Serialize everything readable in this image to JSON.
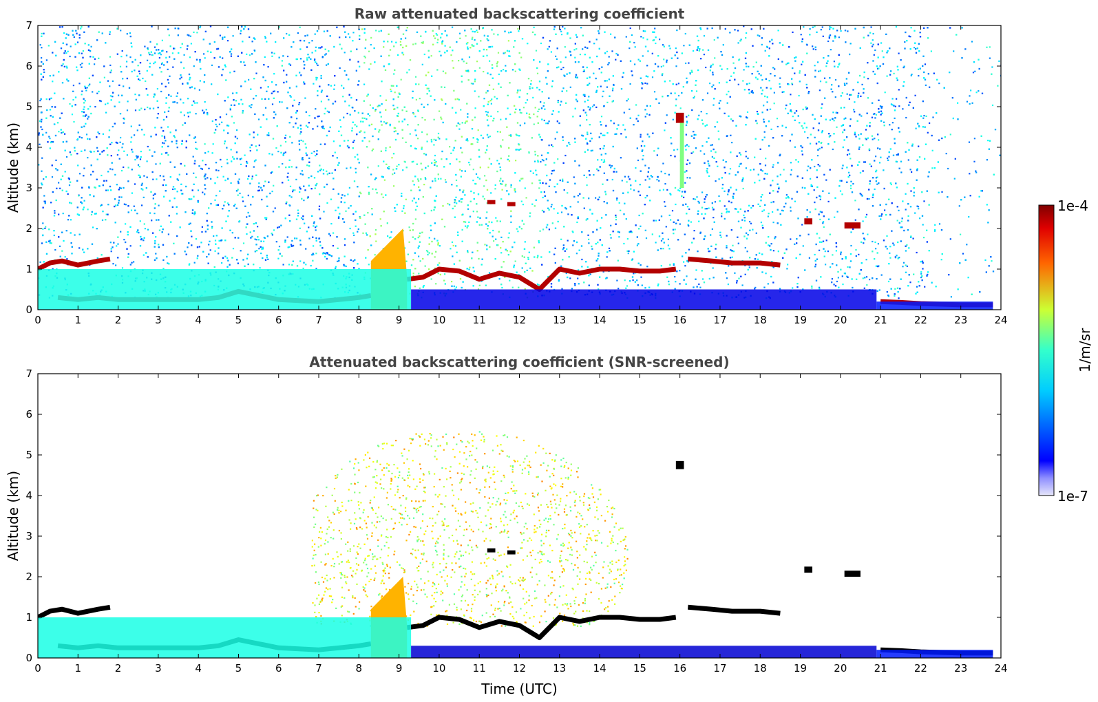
{
  "chart_data": [
    {
      "type": "heatmap",
      "title": "Raw attenuated backscattering coefficient",
      "xlabel": "",
      "ylabel": "Altitude (km)",
      "xlim": [
        0,
        24
      ],
      "ylim": [
        0,
        7
      ],
      "xticks": [
        "0",
        "1",
        "2",
        "3",
        "4",
        "5",
        "6",
        "7",
        "8",
        "9",
        "10",
        "11",
        "12",
        "13",
        "14",
        "15",
        "16",
        "17",
        "18",
        "19",
        "20",
        "21",
        "22",
        "23",
        "24"
      ],
      "yticks": [
        "0",
        "1",
        "2",
        "3",
        "4",
        "5",
        "6",
        "7"
      ],
      "screened": false,
      "features": [
        {
          "kind": "layer",
          "t": [
            0.0,
            0.3,
            0.6,
            1.0,
            1.5,
            1.8
          ],
          "alt": [
            1.0,
            1.15,
            1.2,
            1.1,
            1.2,
            1.25
          ],
          "level": 0.95
        },
        {
          "kind": "layer",
          "t": [
            0.5,
            1.0,
            1.5,
            2.0,
            3.0,
            4.0,
            4.5,
            5.0,
            5.5,
            6.0,
            7.0,
            7.5,
            8.0,
            8.3
          ],
          "alt": [
            0.3,
            0.25,
            0.3,
            0.25,
            0.25,
            0.25,
            0.3,
            0.45,
            0.35,
            0.25,
            0.2,
            0.25,
            0.3,
            0.35
          ],
          "level": 0.95
        },
        {
          "kind": "layer",
          "t": [
            9.2,
            9.6,
            10.0,
            10.5,
            11.0,
            11.5,
            12.0,
            12.5,
            13.0,
            13.5,
            14.0,
            14.5,
            15.0,
            15.5,
            15.9
          ],
          "alt": [
            0.75,
            0.8,
            1.0,
            0.95,
            0.75,
            0.9,
            0.8,
            0.5,
            1.0,
            0.9,
            1.0,
            1.0,
            0.95,
            0.95,
            1.0
          ],
          "level": 0.95
        },
        {
          "kind": "layer",
          "t": [
            16.2,
            16.8,
            17.3,
            18.0,
            18.5
          ],
          "alt": [
            1.25,
            1.2,
            1.15,
            1.15,
            1.1
          ],
          "level": 0.95
        },
        {
          "kind": "layer",
          "t": [
            21.0,
            21.5,
            22.0,
            23.0,
            23.8
          ],
          "alt": [
            0.2,
            0.18,
            0.15,
            0.12,
            0.12
          ],
          "level": 0.95
        },
        {
          "kind": "patch",
          "t0": 15.9,
          "t1": 16.1,
          "a0": 4.6,
          "a1": 4.85,
          "level": 0.95
        },
        {
          "kind": "patch",
          "t0": 16.0,
          "t1": 16.1,
          "a0": 3.0,
          "a1": 4.6,
          "level": 0.5
        },
        {
          "kind": "patch",
          "t0": 11.2,
          "t1": 11.4,
          "a0": 2.6,
          "a1": 2.7,
          "level": 0.95
        },
        {
          "kind": "patch",
          "t0": 11.7,
          "t1": 11.9,
          "a0": 2.55,
          "a1": 2.65,
          "level": 0.95
        },
        {
          "kind": "patch",
          "t0": 19.1,
          "t1": 19.3,
          "a0": 2.1,
          "a1": 2.25,
          "level": 0.95
        },
        {
          "kind": "patch",
          "t0": 20.1,
          "t1": 20.5,
          "a0": 2.0,
          "a1": 2.15,
          "level": 0.95
        },
        {
          "kind": "plume",
          "t0": 8.3,
          "t1": 9.2,
          "top": 2.0,
          "level": 0.7
        },
        {
          "kind": "boundary",
          "t0": 0.0,
          "t1": 9.3,
          "top": 1.0,
          "level": 0.4
        },
        {
          "kind": "boundary",
          "t0": 9.3,
          "t1": 20.9,
          "top": 0.5,
          "level": 0.1
        },
        {
          "kind": "boundary",
          "t0": 20.9,
          "t1": 23.8,
          "top": 0.2,
          "level": 0.15
        }
      ]
    },
    {
      "type": "heatmap",
      "title": "Attenuated backscattering coefficient (SNR-screened)",
      "xlabel": "Time (UTC)",
      "ylabel": "Altitude (km)",
      "xlim": [
        0,
        24
      ],
      "ylim": [
        0,
        7
      ],
      "xticks": [
        "0",
        "1",
        "2",
        "3",
        "4",
        "5",
        "6",
        "7",
        "8",
        "9",
        "10",
        "11",
        "12",
        "13",
        "14",
        "15",
        "16",
        "17",
        "18",
        "19",
        "20",
        "21",
        "22",
        "23",
        "24"
      ],
      "yticks": [
        "0",
        "1",
        "2",
        "3",
        "4",
        "5",
        "6",
        "7"
      ],
      "screened": true,
      "features": [
        {
          "kind": "layer",
          "t": [
            0.0,
            0.3,
            0.6,
            1.0,
            1.5,
            1.8
          ],
          "alt": [
            1.0,
            1.15,
            1.2,
            1.1,
            1.2,
            1.25
          ],
          "level": 1.0
        },
        {
          "kind": "layer",
          "t": [
            0.5,
            1.0,
            1.5,
            2.0,
            3.0,
            4.0,
            4.5,
            5.0,
            5.5,
            6.0,
            7.0,
            7.5,
            8.0,
            8.3
          ],
          "alt": [
            0.3,
            0.25,
            0.3,
            0.25,
            0.25,
            0.25,
            0.3,
            0.45,
            0.35,
            0.25,
            0.2,
            0.25,
            0.3,
            0.35
          ],
          "level": 1.0
        },
        {
          "kind": "layer",
          "t": [
            9.2,
            9.6,
            10.0,
            10.5,
            11.0,
            11.5,
            12.0,
            12.5,
            13.0,
            13.5,
            14.0,
            14.5,
            15.0,
            15.5,
            15.9
          ],
          "alt": [
            0.75,
            0.8,
            1.0,
            0.95,
            0.75,
            0.9,
            0.8,
            0.5,
            1.0,
            0.9,
            1.0,
            1.0,
            0.95,
            0.95,
            1.0
          ],
          "level": 1.0
        },
        {
          "kind": "layer",
          "t": [
            16.2,
            16.8,
            17.3,
            18.0,
            18.5
          ],
          "alt": [
            1.25,
            1.2,
            1.15,
            1.15,
            1.1
          ],
          "level": 1.0
        },
        {
          "kind": "layer",
          "t": [
            21.0,
            21.5,
            22.0,
            23.0,
            23.8
          ],
          "alt": [
            0.2,
            0.18,
            0.15,
            0.12,
            0.12
          ],
          "level": 1.0
        },
        {
          "kind": "patch",
          "t0": 15.9,
          "t1": 16.1,
          "a0": 4.65,
          "a1": 4.85,
          "level": 1.0
        },
        {
          "kind": "patch",
          "t0": 11.2,
          "t1": 11.4,
          "a0": 2.6,
          "a1": 2.7,
          "level": 1.0
        },
        {
          "kind": "patch",
          "t0": 11.7,
          "t1": 11.9,
          "a0": 2.55,
          "a1": 2.65,
          "level": 1.0
        },
        {
          "kind": "patch",
          "t0": 19.1,
          "t1": 19.3,
          "a0": 2.1,
          "a1": 2.25,
          "level": 1.0
        },
        {
          "kind": "patch",
          "t0": 20.1,
          "t1": 20.5,
          "a0": 2.0,
          "a1": 2.15,
          "level": 1.0
        },
        {
          "kind": "plume",
          "t0": 8.3,
          "t1": 9.2,
          "top": 2.0,
          "level": 0.7
        },
        {
          "kind": "boundary",
          "t0": 0.0,
          "t1": 9.3,
          "top": 1.0,
          "level": 0.4
        },
        {
          "kind": "boundary",
          "t0": 9.3,
          "t1": 20.9,
          "top": 0.3,
          "level": 0.08
        },
        {
          "kind": "boundary",
          "t0": 20.9,
          "t1": 23.8,
          "top": 0.2,
          "level": 0.15
        }
      ]
    }
  ],
  "colorbar": {
    "label": "1/m/sr",
    "max_label": "1e-4",
    "min_label": "1e-7",
    "colormap": "jet",
    "saturated_color": "#000000"
  }
}
